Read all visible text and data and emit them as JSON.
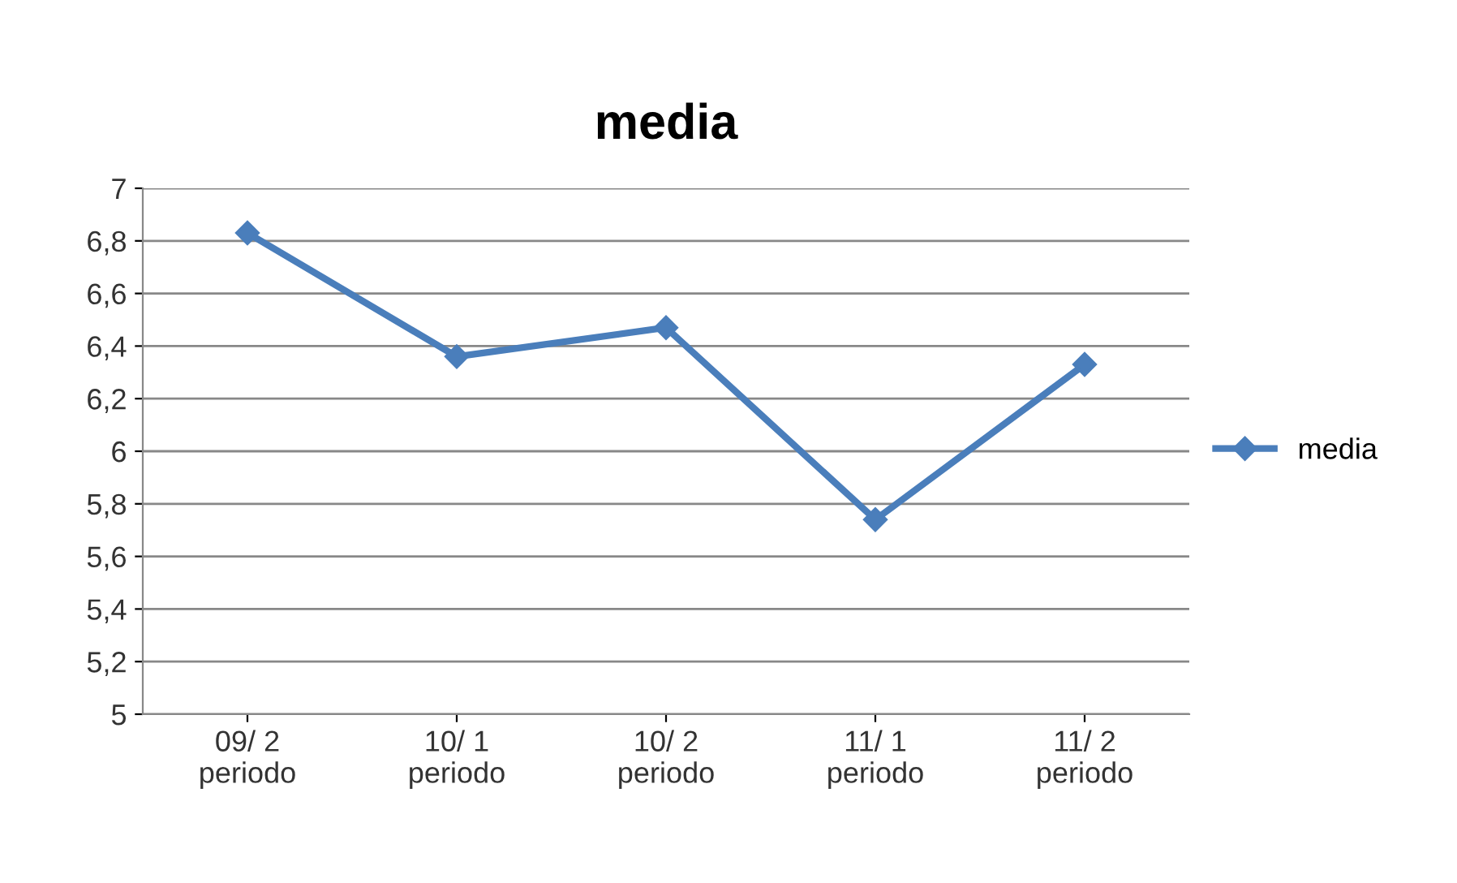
{
  "chart_data": {
    "type": "line",
    "title": "media",
    "categories": [
      "09/ 2\nperiodo",
      "10/ 1\nperiodo",
      "10/ 2\nperiodo",
      "11/ 1\nperiodo",
      "11/ 2\nperiodo"
    ],
    "series": [
      {
        "name": "media",
        "color": "#4a7ebb",
        "values": [
          6.83,
          6.36,
          6.47,
          5.74,
          6.33
        ]
      }
    ],
    "ylim": [
      5,
      7
    ],
    "yticks": [
      5,
      {
        "value": 5.2,
        "label": "5,2"
      },
      {
        "value": 5.4,
        "label": "5,4"
      },
      {
        "value": 5.6,
        "label": "5,6"
      },
      {
        "value": 5.8,
        "label": "5,8"
      },
      6,
      {
        "value": 6.2,
        "label": "6,2"
      },
      {
        "value": 6.4,
        "label": "6,4"
      },
      {
        "value": 6.6,
        "label": "6,6"
      },
      {
        "value": 6.8,
        "label": "6,8"
      },
      7
    ],
    "grid": "y",
    "legend": "right",
    "marker": "diamond",
    "line_style": "solid"
  }
}
